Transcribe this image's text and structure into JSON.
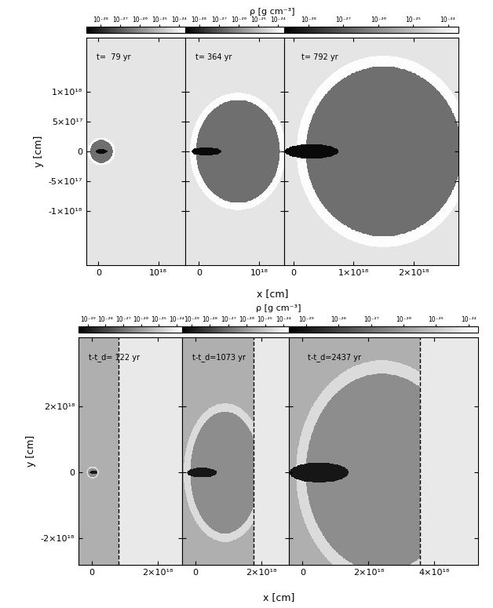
{
  "chart_data": {
    "type": "image_grid",
    "rows": [
      {
        "colorbar_label": "ρ [g cm⁻³]",
        "xlabel": "x [cm]",
        "ylabel": "y [cm]",
        "panels": [
          {
            "type": "image",
            "title": "t=  79 yr",
            "tick_labels": true,
            "xlim": [
              -2e+17,
              1.45e+18
            ],
            "ylim": [
              -1.9e+18,
              1.9e+18
            ],
            "xticks": [
              {
                "value": 0,
                "label": "0"
              },
              {
                "value": 1e+18,
                "label": "10¹⁸"
              }
            ],
            "yticks": [
              {
                "value": -1e+18,
                "label": "-1×10¹⁸"
              },
              {
                "value": -5e+17,
                "label": "-5×10¹⁷"
              },
              {
                "value": 0,
                "label": "0"
              },
              {
                "value": 5e+17,
                "label": "5×10¹⁷"
              },
              {
                "value": 1e+18,
                "label": "1×10¹⁸"
              }
            ],
            "colorbar": {
              "range": [
                2e-29,
                2e-24
              ],
              "ticks": [
                {
                  "value": 1e-28,
                  "label": "10⁻²⁸"
                },
                {
                  "value": 1e-27,
                  "label": "10⁻²⁷"
                },
                {
                  "value": 1e-26,
                  "label": "10⁻²⁶"
                },
                {
                  "value": 1e-25,
                  "label": "10⁻²⁵"
                },
                {
                  "value": 1e-24,
                  "label": "10⁻²⁴"
                }
              ]
            },
            "background": 6e-25,
            "regions": [
              {
                "center": [
                  5e+16,
                  0
                ],
                "semi_axes": [
                  2.3e+17,
                  2.3e+17
                ],
                "density": 1.8e-24
              },
              {
                "center": [
                  5e+16,
                  0
                ],
                "semi_axes": [
                  1.9e+17,
                  1.9e+17
                ],
                "density": 3e-27
              },
              {
                "center": [
                  5e+16,
                  0
                ],
                "semi_axes": [
                  1e+17,
                  4e+16
                ],
                "density": 3e-29
              }
            ]
          },
          {
            "type": "image",
            "title": "t= 364 yr",
            "tick_labels": "x",
            "xlim": [
              -2.3e+17,
              1.42e+18
            ],
            "ylim": [
              -1.9e+18,
              1.9e+18
            ],
            "xticks": [
              {
                "value": 0,
                "label": "0"
              },
              {
                "value": 1e+18,
                "label": "10¹⁸"
              }
            ],
            "yticks": [
              -1e+18,
              -5e+17,
              0,
              5e+17,
              1e+18
            ],
            "colorbar": {
              "range": [
                2e-29,
                2e-24
              ],
              "ticks": [
                {
                  "value": 1e-28,
                  "label": "10⁻²⁸"
                },
                {
                  "value": 1e-27,
                  "label": "10⁻²⁷"
                },
                {
                  "value": 1e-26,
                  "label": "10⁻²⁶"
                },
                {
                  "value": 1e-25,
                  "label": "10⁻²⁵"
                },
                {
                  "value": 1e-24,
                  "label": "10⁻²⁴"
                }
              ]
            },
            "background": 6e-25,
            "regions": [
              {
                "center": [
                  6.5e+17,
                  0
                ],
                "semi_axes": [
                  8e+17,
                  9.8e+17
                ],
                "density": 1.8e-24
              },
              {
                "center": [
                  6.5e+17,
                  0
                ],
                "semi_axes": [
                  7e+17,
                  8.6e+17
                ],
                "density": 3e-27
              },
              {
                "center": [
                  1.2e+17,
                  0
                ],
                "semi_axes": [
                  2.5e+17,
                  7e+16
                ],
                "density": 3e-29
              }
            ]
          },
          {
            "type": "image",
            "title": "t= 792 yr",
            "tick_labels": "x",
            "xlim": [
              -1.6e+17,
              2.75e+18
            ],
            "ylim": [
              -1.9e+18,
              1.9e+18
            ],
            "xticks": [
              {
                "value": 0,
                "label": "0"
              },
              {
                "value": 1e+18,
                "label": "1×10¹⁸"
              },
              {
                "value": 2e+18,
                "label": "2×10¹⁸"
              }
            ],
            "yticks": [
              -1e+18,
              -5e+17,
              0,
              5e+17,
              1e+18
            ],
            "colorbar": {
              "range": [
                2e-29,
                2e-24
              ],
              "ticks": [
                {
                  "value": 1e-28,
                  "label": "10⁻²⁸"
                },
                {
                  "value": 1e-27,
                  "label": "10⁻²⁷"
                },
                {
                  "value": 1e-26,
                  "label": "10⁻²⁶"
                },
                {
                  "value": 1e-25,
                  "label": "10⁻²⁵"
                },
                {
                  "value": 1e-24,
                  "label": "10⁻²⁴"
                }
              ]
            },
            "background": 6e-25,
            "regions": [
              {
                "center": [
                  1.5e+18,
                  0
                ],
                "semi_axes": [
                  1.45e+18,
                  1.6e+18
                ],
                "density": 1.8e-24
              },
              {
                "center": [
                  1.5e+18,
                  0
                ],
                "semi_axes": [
                  1.3e+18,
                  1.42e+18
                ],
                "density": 3e-27
              },
              {
                "center": [
                  3e+17,
                  0
                ],
                "semi_axes": [
                  4.5e+17,
                  1.2e+17
                ],
                "density": 3e-29
              }
            ]
          }
        ]
      },
      {
        "colorbar_label": "ρ [g cm⁻³]",
        "xlabel": "x [cm]",
        "ylabel": "y [cm]",
        "panels": [
          {
            "type": "image",
            "title": "t-t_d= 122 yr",
            "tick_labels": true,
            "xlim": [
              -4.1e+17,
              2.72e+18
            ],
            "ylim": [
              -2.8e+18,
              4.1e+18
            ],
            "xticks": [
              {
                "value": 0,
                "label": "0"
              },
              {
                "value": 2e+18,
                "label": "2×10¹⁸"
              }
            ],
            "yticks": [
              {
                "value": -2e+18,
                "label": "-2×10¹⁸"
              },
              {
                "value": 0,
                "label": "0"
              },
              {
                "value": 2e+18,
                "label": "2×10¹⁸"
              }
            ],
            "colorbar": {
              "range": [
                3e-30,
                2e-24
              ],
              "ticks": [
                {
                  "value": 1e-29,
                  "label": "10⁻²⁹"
                },
                {
                  "value": 1e-28,
                  "label": "10⁻²⁸"
                },
                {
                  "value": 1e-27,
                  "label": "10⁻²⁷"
                },
                {
                  "value": 1e-26,
                  "label": "10⁻²⁶"
                },
                {
                  "value": 1e-25,
                  "label": "10⁻²⁵"
                },
                {
                  "value": 1e-24,
                  "label": "10⁻²⁴"
                }
              ]
            },
            "background": 6e-25,
            "boundary": {
              "x": 8e+17,
              "left_density": 3e-26,
              "line_style": "dashed"
            },
            "regions": [
              {
                "center": [
                  2e+16,
                  0
                ],
                "semi_axes": [
                  1.8e+17,
                  1.8e+17
                ],
                "density": 3e-25
              },
              {
                "center": [
                  2e+16,
                  0
                ],
                "semi_axes": [
                  1.4e+17,
                  1.4e+17
                ],
                "density": 5e-27
              },
              {
                "center": [
                  5e+16,
                  0
                ],
                "semi_axes": [
                  1.2e+17,
                  5e+16
                ],
                "density": 1e-29
              }
            ]
          },
          {
            "type": "image",
            "title": "t-t_d=1073 yr",
            "tick_labels": "x",
            "xlim": [
              -4.1e+17,
              2.84e+18
            ],
            "ylim": [
              -2.8e+18,
              4.1e+18
            ],
            "xticks": [
              {
                "value": 0,
                "label": "0"
              },
              {
                "value": 2e+18,
                "label": "2×10¹⁸"
              }
            ],
            "yticks": [
              -2e+18,
              0,
              2e+18
            ],
            "colorbar": {
              "range": [
                3e-30,
                2e-24
              ],
              "ticks": [
                {
                  "value": 1e-29,
                  "label": "10⁻²⁹"
                },
                {
                  "value": 1e-28,
                  "label": "10⁻²⁸"
                },
                {
                  "value": 1e-27,
                  "label": "10⁻²⁷"
                },
                {
                  "value": 1e-26,
                  "label": "10⁻²⁶"
                },
                {
                  "value": 1e-25,
                  "label": "10⁻²⁵"
                },
                {
                  "value": 1e-24,
                  "label": "10⁻²⁴"
                }
              ]
            },
            "background": 6e-25,
            "boundary": {
              "x": 1.76e+18,
              "left_density": 3e-26,
              "line_style": "dashed"
            },
            "regions": [
              {
                "center": [
                  9e+17,
                  0
                ],
                "semi_axes": [
                  1.25e+18,
                  2.1e+18
                ],
                "density": 3e-25
              },
              {
                "center": [
                  9e+17,
                  0
                ],
                "semi_axes": [
                  1.05e+18,
                  1.85e+18
                ],
                "density": 5e-27
              },
              {
                "center": [
                  2e+17,
                  0
                ],
                "semi_axes": [
                  4.5e+17,
                  1.5e+17
                ],
                "density": 1e-29
              }
            ]
          },
          {
            "type": "image",
            "title": "t-t_d=2437 yr",
            "tick_labels": "x",
            "xlim": [
              -4.1e+17,
              5.33e+18
            ],
            "ylim": [
              -2.8e+18,
              4.1e+18
            ],
            "xticks": [
              {
                "value": 0,
                "label": "0"
              },
              {
                "value": 2e+18,
                "label": "2×10¹⁸"
              },
              {
                "value": 4e+18,
                "label": "4×10¹⁸"
              }
            ],
            "yticks": [
              -2e+18,
              0,
              2e+18
            ],
            "colorbar": {
              "range": [
                3e-30,
                2e-24
              ],
              "ticks": [
                {
                  "value": 1e-29,
                  "label": "10⁻²⁹"
                },
                {
                  "value": 1e-28,
                  "label": "10⁻²⁸"
                },
                {
                  "value": 1e-27,
                  "label": "10⁻²⁷"
                },
                {
                  "value": 1e-26,
                  "label": "10⁻²⁶"
                },
                {
                  "value": 1e-25,
                  "label": "10⁻²⁵"
                },
                {
                  "value": 1e-24,
                  "label": "10⁻²⁴"
                }
              ]
            },
            "background": 6e-25,
            "boundary": {
              "x": 3.57e+18,
              "left_density": 3e-26,
              "line_style": "dashed"
            },
            "regions": [
              {
                "center": [
                  2.4e+18,
                  0
                ],
                "semi_axes": [
                  2.6e+18,
                  3.4e+18
                ],
                "density": 3e-25
              },
              {
                "center": [
                  2.4e+18,
                  0
                ],
                "semi_axes": [
                  2.3e+18,
                  3e+18
                ],
                "density": 5e-27
              },
              {
                "center": [
                  5e+17,
                  0
                ],
                "semi_axes": [
                  9e+17,
                  3e+17
                ],
                "density": 1e-29
              }
            ]
          }
        ]
      }
    ]
  }
}
